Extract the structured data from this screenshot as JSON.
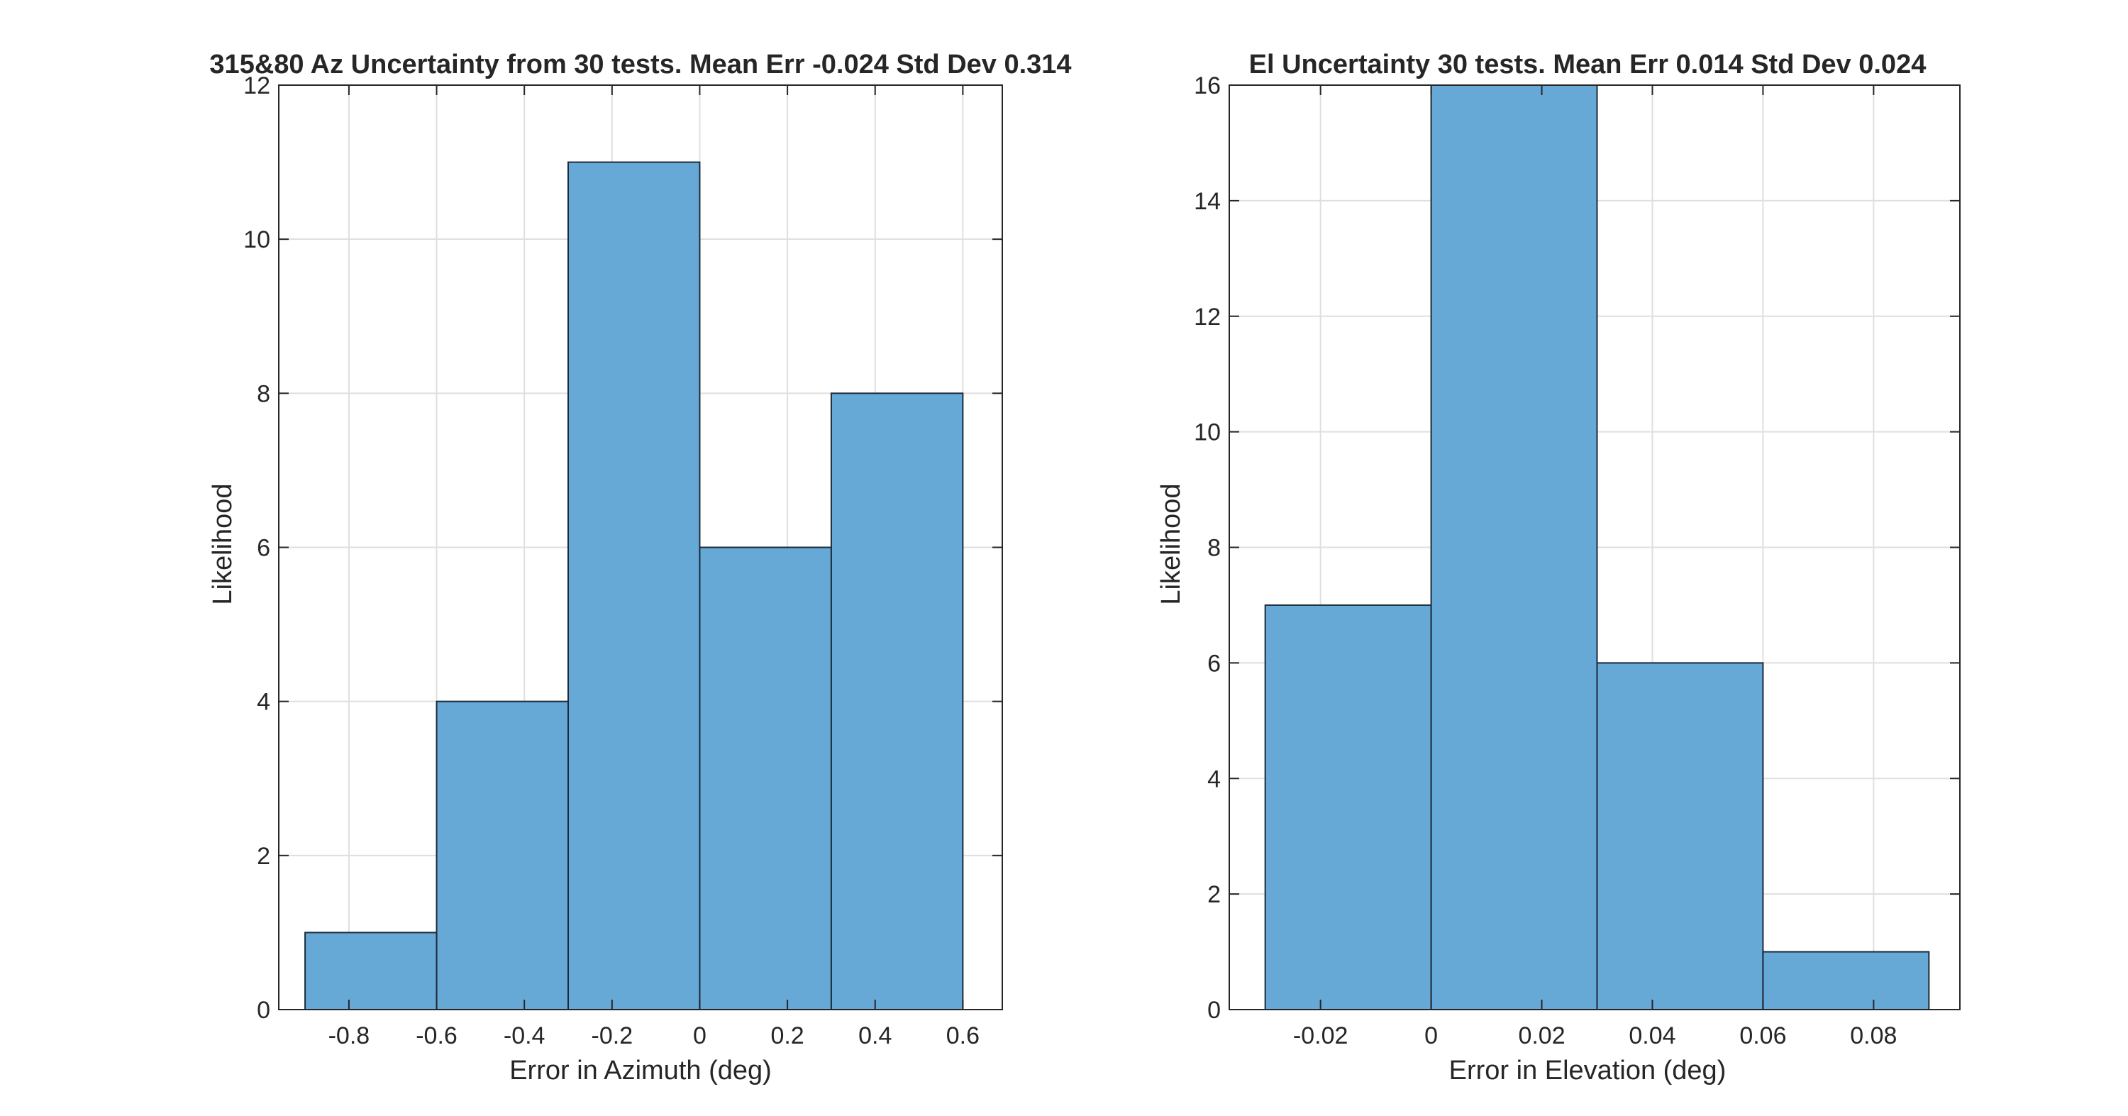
{
  "chart_data": [
    {
      "type": "bar",
      "subtype": "histogram",
      "title": "315&80 Az Uncertainty from 30 tests. Mean Err -0.024 Std Dev 0.314",
      "xlabel": "Error in Azimuth (deg)",
      "ylabel": "Likelihood",
      "bin_edges": [
        -0.9,
        -0.6,
        -0.3,
        0,
        0.3,
        0.6
      ],
      "values": [
        1,
        4,
        11,
        6,
        8
      ],
      "xlim": [
        -0.96,
        0.69
      ],
      "ylim": [
        0,
        12
      ],
      "xticks": [
        -0.8,
        -0.6,
        -0.4,
        -0.2,
        0,
        0.2,
        0.4,
        0.6
      ],
      "xtick_labels": [
        "-0.8",
        "-0.6",
        "-0.4",
        "-0.2",
        "0",
        "0.2",
        "0.4",
        "0.6"
      ],
      "yticks": [
        0,
        2,
        4,
        6,
        8,
        10,
        12
      ],
      "ytick_labels": [
        "0",
        "2",
        "4",
        "6",
        "8",
        "10",
        "12"
      ],
      "grid": true,
      "bar_color": "#67a9d6"
    },
    {
      "type": "bar",
      "subtype": "histogram",
      "title": "El Uncertainty 30 tests. Mean Err 0.014 Std Dev 0.024",
      "xlabel": "Error in Elevation (deg)",
      "ylabel": "Likelihood",
      "bin_edges": [
        -0.03,
        0,
        0.03,
        0.06,
        0.09
      ],
      "values": [
        7,
        16,
        6,
        1
      ],
      "xlim": [
        -0.0365,
        0.0956
      ],
      "ylim": [
        0,
        16
      ],
      "xticks": [
        -0.02,
        0,
        0.02,
        0.04,
        0.06,
        0.08
      ],
      "xtick_labels": [
        "-0.02",
        "0",
        "0.02",
        "0.04",
        "0.06",
        "0.08"
      ],
      "yticks": [
        0,
        2,
        4,
        6,
        8,
        10,
        12,
        14,
        16
      ],
      "ytick_labels": [
        "0",
        "2",
        "4",
        "6",
        "8",
        "10",
        "12",
        "14",
        "16"
      ],
      "grid": true,
      "bar_color": "#67a9d6"
    }
  ]
}
